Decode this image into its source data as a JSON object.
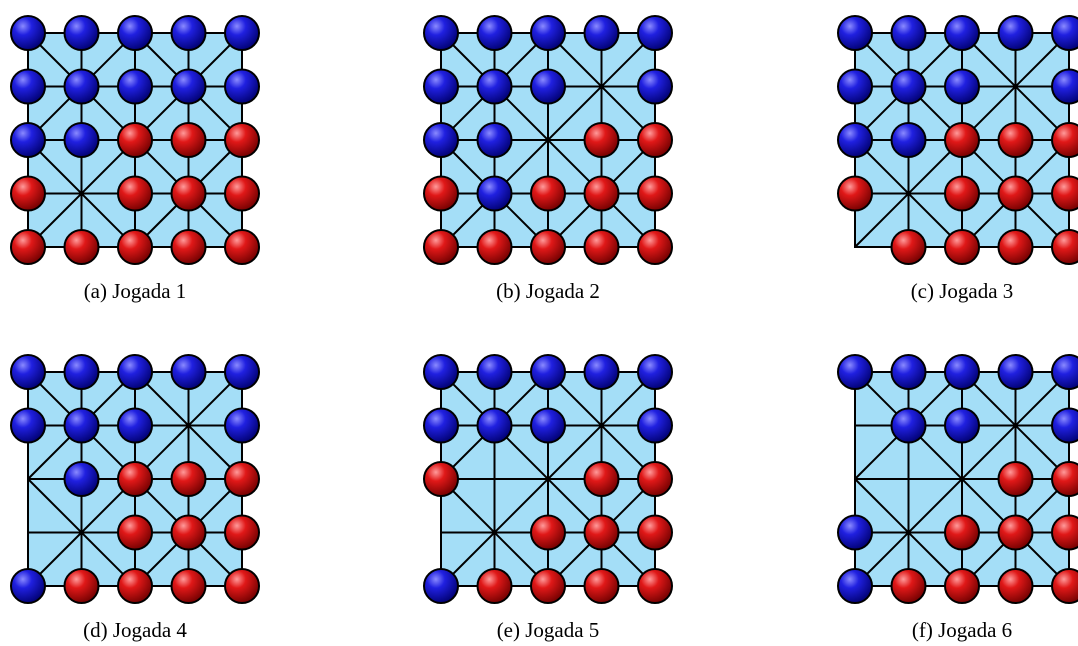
{
  "figures": [
    {
      "caption": "(a) Jogada 1"
    },
    {
      "caption": "(b) Jogada 2"
    },
    {
      "caption": "(c) Jogada 3"
    },
    {
      "caption": "(d) Jogada 4"
    },
    {
      "caption": "(e) Jogada 5"
    },
    {
      "caption": "(f) Jogada 6"
    }
  ]
}
